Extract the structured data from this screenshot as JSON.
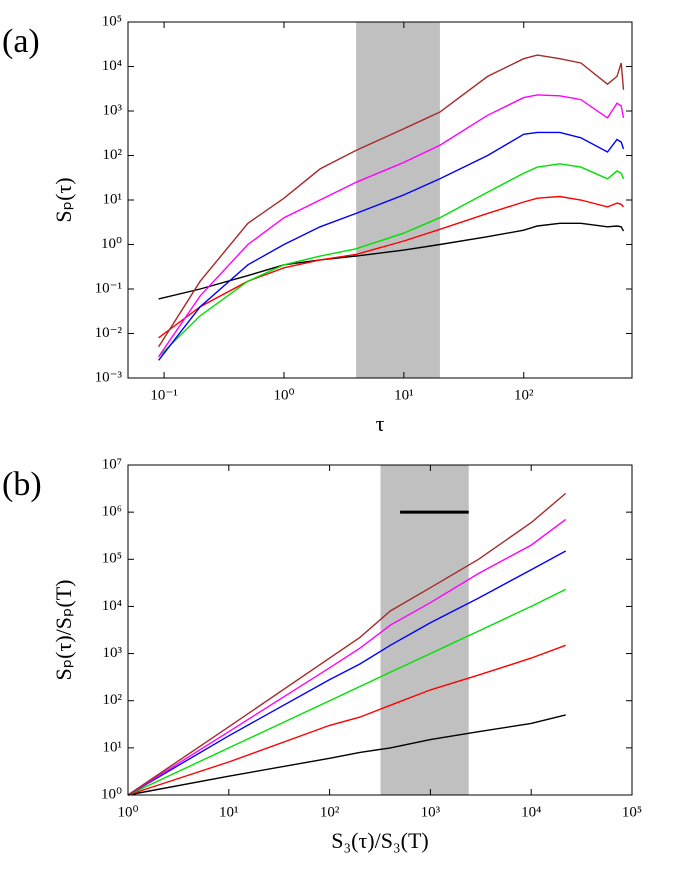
{
  "chart_data": [
    {
      "type": "line",
      "panel_label": "(a)",
      "xlabel": "τ",
      "ylabel": "Sₚ(τ)",
      "xscale": "log",
      "yscale": "log",
      "xlim": [
        0.05,
        800
      ],
      "ylim": [
        0.001,
        100000
      ],
      "xticks": [
        {
          "value": 0.1,
          "label": "10⁻¹"
        },
        {
          "value": 1,
          "label": "10⁰"
        },
        {
          "value": 10,
          "label": "10¹"
        },
        {
          "value": 100,
          "label": "10²"
        }
      ],
      "yticks": [
        {
          "value": 0.001,
          "label": "10⁻³"
        },
        {
          "value": 0.01,
          "label": "10⁻²"
        },
        {
          "value": 0.1,
          "label": "10⁻¹"
        },
        {
          "value": 1,
          "label": "10⁰"
        },
        {
          "value": 10,
          "label": "10¹"
        },
        {
          "value": 100,
          "label": "10²"
        },
        {
          "value": 1000,
          "label": "10³"
        },
        {
          "value": 10000,
          "label": "10⁴"
        },
        {
          "value": 100000,
          "label": "10⁵"
        }
      ],
      "shaded_span": [
        4,
        20
      ],
      "shade_color": "#c0c0c0",
      "x": [
        0.09,
        0.2,
        0.5,
        1,
        2,
        4,
        10,
        20,
        50,
        100,
        130,
        200,
        300,
        500,
        600,
        650,
        680
      ],
      "series": [
        {
          "color": "#000000",
          "values": [
            0.06,
            0.1,
            0.2,
            0.35,
            0.45,
            0.55,
            0.75,
            1.0,
            1.5,
            2.1,
            2.6,
            3,
            3.0,
            2.5,
            2.6,
            2.5,
            2.0
          ]
        },
        {
          "color": "#ff0000",
          "values": [
            0.008,
            0.04,
            0.15,
            0.3,
            0.45,
            0.6,
            1.2,
            2.2,
            5,
            9,
            11,
            12,
            10,
            7,
            8.5,
            8,
            7
          ]
        },
        {
          "color": "#00e000",
          "values": [
            0.003,
            0.025,
            0.15,
            0.35,
            0.55,
            0.8,
            1.8,
            4,
            15,
            40,
            55,
            65,
            55,
            30,
            45,
            40,
            30
          ]
        },
        {
          "color": "#0000ff",
          "values": [
            0.0025,
            0.04,
            0.35,
            1,
            2.5,
            5,
            13,
            30,
            100,
            300,
            330,
            330,
            250,
            120,
            230,
            200,
            140
          ]
        },
        {
          "color": "#ff00ff",
          "values": [
            0.003,
            0.07,
            1,
            4,
            10,
            25,
            70,
            170,
            800,
            2000,
            2300,
            2200,
            1800,
            700,
            1500,
            1300,
            700
          ]
        },
        {
          "color": "#a52a2a",
          "values": [
            0.005,
            0.15,
            3,
            11,
            50,
            130,
            400,
            950,
            6000,
            15000,
            18000,
            15000,
            12000,
            4000,
            6000,
            12000,
            3000
          ]
        }
      ]
    },
    {
      "type": "line",
      "panel_label": "(b)",
      "xlabel": "S₃(τ)/S₃(T)",
      "ylabel": "Sₚ(τ)/Sₚ(T)",
      "xscale": "log",
      "yscale": "log",
      "xlim": [
        1,
        100000
      ],
      "ylim": [
        1,
        10000000
      ],
      "xticks": [
        {
          "value": 1,
          "label": "10⁰"
        },
        {
          "value": 10,
          "label": "10¹"
        },
        {
          "value": 100,
          "label": "10²"
        },
        {
          "value": 1000,
          "label": "10³"
        },
        {
          "value": 10000,
          "label": "10⁴"
        },
        {
          "value": 100000,
          "label": "10⁵"
        }
      ],
      "yticks": [
        {
          "value": 1,
          "label": "10⁰"
        },
        {
          "value": 10,
          "label": "10¹"
        },
        {
          "value": 100,
          "label": "10²"
        },
        {
          "value": 1000,
          "label": "10³"
        },
        {
          "value": 10000,
          "label": "10⁴"
        },
        {
          "value": 100000,
          "label": "10⁵"
        },
        {
          "value": 1000000,
          "label": "10⁶"
        },
        {
          "value": 10000000,
          "label": "10⁷"
        }
      ],
      "shaded_span": [
        320,
        2400
      ],
      "shade_color": "#c0c0c0",
      "hline": {
        "x": [
          500,
          2400
        ],
        "y": 1000000
      },
      "x": [
        1,
        10,
        100,
        200,
        400,
        1000,
        3000,
        10000,
        22000
      ],
      "series": [
        {
          "color": "#000000",
          "values": [
            1,
            2.5,
            6,
            8,
            10,
            15,
            22,
            33,
            50
          ]
        },
        {
          "color": "#ff0000",
          "values": [
            1,
            5,
            30,
            45,
            80,
            170,
            350,
            800,
            1500
          ]
        },
        {
          "color": "#00e000",
          "values": [
            1,
            10,
            100,
            200,
            400,
            1000,
            3000,
            10000,
            23000
          ]
        },
        {
          "color": "#0000ff",
          "values": [
            1,
            18,
            280,
            600,
            1500,
            4500,
            15000,
            60000,
            150000
          ]
        },
        {
          "color": "#ff00ff",
          "values": [
            1,
            22,
            500,
            1300,
            4000,
            12000,
            50000,
            200000,
            700000
          ]
        },
        {
          "color": "#a52a2a",
          "values": [
            1,
            28,
            800,
            2200,
            8000,
            25000,
            100000,
            600000,
            2500000
          ]
        }
      ]
    }
  ]
}
